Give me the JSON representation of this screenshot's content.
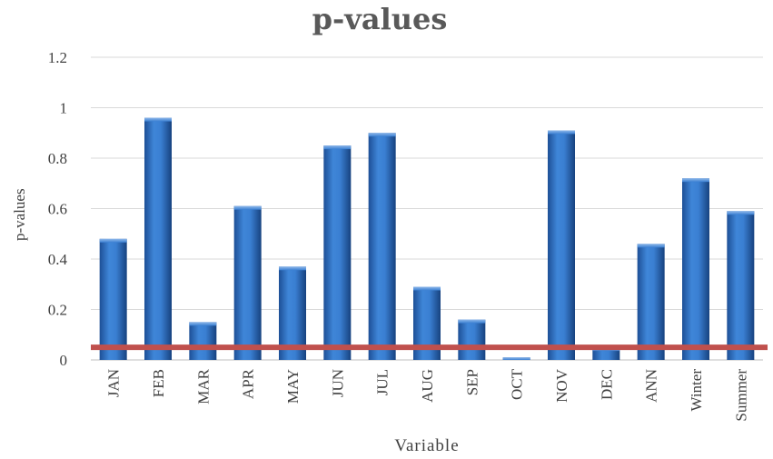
{
  "chart_data": {
    "type": "bar",
    "title": "p-values",
    "xlabel": "Variable",
    "ylabel": "p-values",
    "categories": [
      "JAN",
      "FEB",
      "MAR",
      "APR",
      "MAY",
      "JUN",
      "JUL",
      "AUG",
      "SEP",
      "OCT",
      "NOV",
      "DEC",
      "ANN",
      "Winter",
      "Summer"
    ],
    "values": [
      0.48,
      0.96,
      0.15,
      0.61,
      0.37,
      0.85,
      0.9,
      0.29,
      0.16,
      0.01,
      0.91,
      0.05,
      0.46,
      0.72,
      0.59
    ],
    "yticks": [
      "0",
      "0.2",
      "0.4",
      "0.6",
      "0.8",
      "1",
      "1.2"
    ],
    "ylim": [
      0,
      1.2
    ],
    "reference_line": {
      "value": 0.05,
      "color": "#c0504d"
    },
    "bar_color": "#2f6fbf",
    "grid": true
  }
}
